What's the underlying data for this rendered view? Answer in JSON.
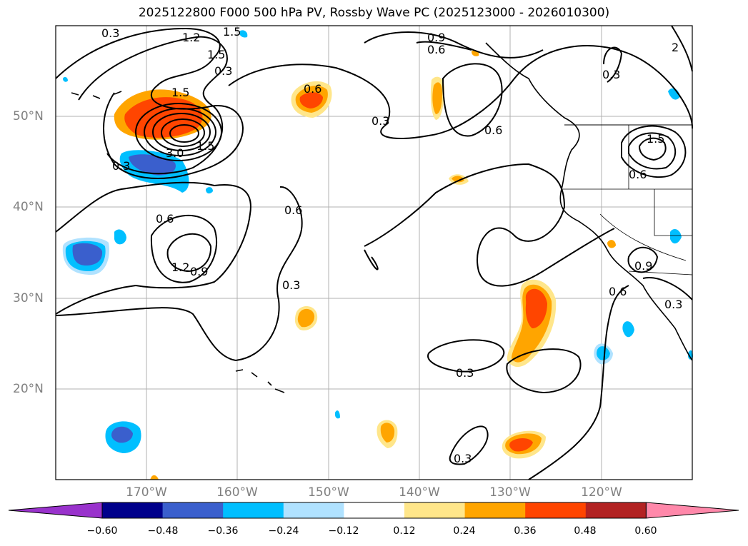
{
  "title": "2025122800 F000 500 hPa PV, Rossby Wave PC (2025123000 - 2026010300)",
  "lat_labels": [
    "50°N",
    "40°N",
    "30°N",
    "20°N"
  ],
  "lon_labels": [
    "170°W",
    "160°W",
    "150°W",
    "140°W",
    "130°W",
    "120°W"
  ],
  "contour_labels": [
    "0.3",
    "1.2",
    "1.5",
    "1.5",
    "1.5",
    "3.0",
    "1.5",
    "0.3",
    "0.6",
    "0.6",
    "1.2",
    "0.9",
    "0.6",
    "0.3",
    "0.3",
    "0.3",
    "0.3",
    "0.3",
    "0.6",
    "0.6",
    "0.9",
    "0.6",
    "0.3",
    "0.9",
    "1.5",
    "0.6",
    "0.3",
    "2"
  ],
  "colorbar": {
    "ticks": [
      "−0.60",
      "−0.48",
      "−0.36",
      "−0.24",
      "−0.12",
      "0.12",
      "0.24",
      "0.36",
      "0.48",
      "0.60"
    ],
    "colors": [
      "#9932CC",
      "#00008B",
      "#3A5FCD",
      "#00BFFF",
      "#B0E2FF",
      "#FFFFFF",
      "#FFE68A",
      "#FFA500",
      "#FF4500",
      "#B22222",
      "#FF88AA"
    ]
  },
  "colors": {
    "land_outline": "#000000",
    "grid": "#b0b0b0"
  }
}
